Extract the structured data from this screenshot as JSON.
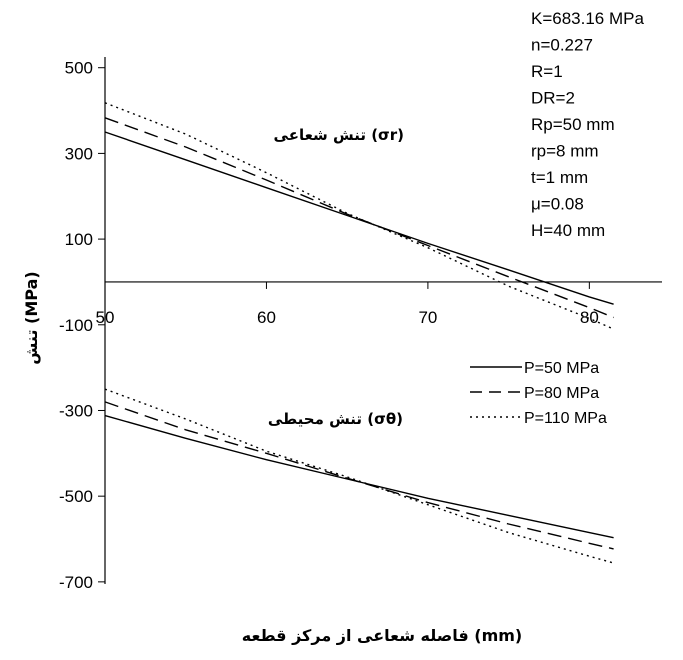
{
  "chart_data": {
    "type": "line",
    "xlabel": "فاصله شعاعی از مرکز قطعه (mm)",
    "ylabel": "تنش (MPa)",
    "xlim": [
      50,
      84.5
    ],
    "ylim": [
      -705,
      525
    ],
    "x_ticks": [
      50,
      60,
      70,
      80
    ],
    "x_tick_labels": [
      "50",
      "60",
      "70",
      "80"
    ],
    "y_ticks": [
      500,
      300,
      100,
      -100,
      -300,
      -500,
      -700
    ],
    "y_tick_labels": [
      "500",
      "300",
      "100",
      "-100",
      "-300",
      "-500",
      "-700"
    ],
    "grid": false,
    "legend_position": "right",
    "parameters": [
      "K=683.16 MPa",
      "n=0.227",
      "R=1",
      "DR=2",
      "Rp=50 mm",
      "rp=8 mm",
      "t=1 mm",
      "μ=0.08",
      "H=40 mm"
    ],
    "annotations": [
      "تنش شعاعی (σr)",
      "تنش محیطی (σθ)"
    ],
    "series": [
      {
        "name": "P=50 MPa",
        "style": "solid",
        "radial": {
          "x": [
            50,
            55,
            60,
            65,
            70,
            75,
            80,
            81.5
          ],
          "y": [
            350,
            285,
            220,
            155,
            90,
            28,
            -35,
            -52
          ]
        },
        "hoop": {
          "x": [
            50,
            55,
            60,
            65,
            70,
            75,
            80,
            81.5
          ],
          "y": [
            -312,
            -365,
            -415,
            -460,
            -505,
            -545,
            -585,
            -597
          ]
        }
      },
      {
        "name": "P=80 MPa",
        "style": "dashed",
        "radial": {
          "x": [
            50,
            55,
            60,
            65,
            70,
            75,
            80,
            81.5
          ],
          "y": [
            383,
            315,
            238,
            158,
            85,
            12,
            -60,
            -83
          ]
        },
        "hoop": {
          "x": [
            50,
            55,
            60,
            65,
            70,
            75,
            80,
            81.5
          ],
          "y": [
            -280,
            -345,
            -400,
            -458,
            -515,
            -565,
            -610,
            -623
          ]
        }
      },
      {
        "name": "P=110 MPa",
        "style": "dotted",
        "radial": {
          "x": [
            50,
            55,
            60,
            65,
            70,
            75,
            80,
            81.5
          ],
          "y": [
            418,
            345,
            255,
            160,
            80,
            -10,
            -85,
            -110
          ]
        },
        "hoop": {
          "x": [
            50,
            55,
            60,
            65,
            70,
            75,
            80,
            81.5
          ],
          "y": [
            -250,
            -320,
            -395,
            -455,
            -520,
            -585,
            -640,
            -656
          ]
        }
      }
    ]
  }
}
